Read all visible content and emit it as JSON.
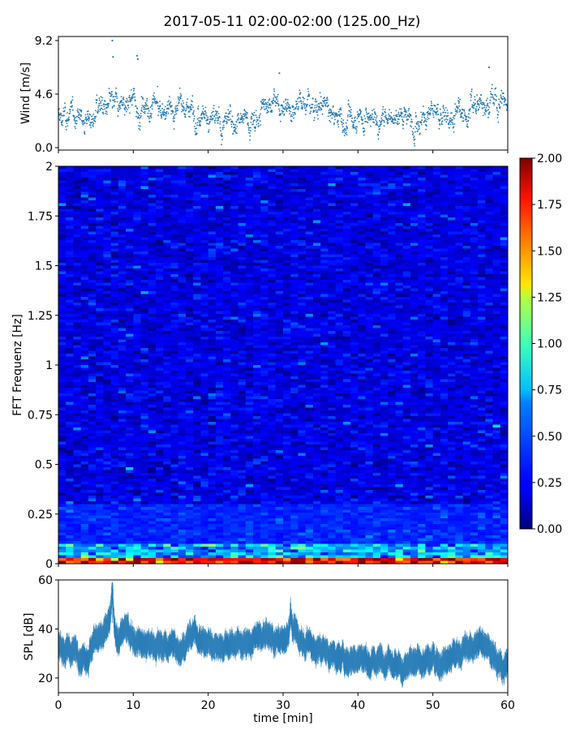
{
  "title": "2017-05-11 02:00-02:00 (125.00_Hz)",
  "chart_data": [
    {
      "type": "scatter",
      "name": "wind",
      "ylabel": "Wind [m/s]",
      "xlim": [
        0,
        60
      ],
      "ylim": [
        0,
        9.2
      ],
      "yticks": [
        "0.0",
        "4.6",
        "9.2"
      ],
      "marker_color": "#1f77b4",
      "approx_mean": 3.0,
      "notable_points": [
        {
          "x": 7.2,
          "y": 9.2
        },
        {
          "x": 7.3,
          "y": 7.8
        },
        {
          "x": 10.5,
          "y": 7.9
        },
        {
          "x": 10.6,
          "y": 7.6
        },
        {
          "x": 29.5,
          "y": 6.4
        },
        {
          "x": 57.5,
          "y": 6.9
        }
      ],
      "segments_mean": [
        {
          "x": [
            0,
            5
          ],
          "y": 2.6
        },
        {
          "x": [
            5,
            12
          ],
          "y": 3.5
        },
        {
          "x": [
            12,
            20
          ],
          "y": 3.3
        },
        {
          "x": [
            20,
            27
          ],
          "y": 2.3
        },
        {
          "x": [
            27,
            36
          ],
          "y": 3.8
        },
        {
          "x": [
            36,
            45
          ],
          "y": 2.6
        },
        {
          "x": [
            45,
            55
          ],
          "y": 2.9
        },
        {
          "x": [
            55,
            60
          ],
          "y": 3.8
        }
      ]
    },
    {
      "type": "heatmap",
      "name": "spectrogram",
      "ylabel": "FFT Frequenz [Hz]",
      "xlim": [
        0,
        60
      ],
      "ylim": [
        0,
        2
      ],
      "yticks": [
        "0",
        "0.25",
        "0.5",
        "0.75",
        "1",
        "1.25",
        "1.5",
        "1.75",
        "2"
      ],
      "colormap": "jet",
      "colorbar": {
        "range": [
          0,
          2
        ],
        "ticks": [
          "0.00",
          "0.25",
          "0.50",
          "0.75",
          "1.00",
          "1.25",
          "1.50",
          "1.75",
          "2.00"
        ]
      },
      "description_values": {
        "background_level": 0.2,
        "low_freq_band_0_to_0_1_hz": 0.6,
        "lowest_band_below_0_03_hz": 1.8
      }
    },
    {
      "type": "line",
      "name": "spl",
      "ylabel": "SPL [dB]",
      "xlabel": "time [min]",
      "xlim": [
        0,
        60
      ],
      "ylim": [
        14,
        60
      ],
      "yticks": [
        "20",
        "40",
        "60"
      ],
      "xticks": [
        "0",
        "10",
        "20",
        "30",
        "40",
        "50",
        "60"
      ],
      "line_color": "#1f77b4",
      "anchors": [
        {
          "x": 0,
          "y": 33
        },
        {
          "x": 2,
          "y": 31
        },
        {
          "x": 4,
          "y": 30
        },
        {
          "x": 5,
          "y": 38
        },
        {
          "x": 6,
          "y": 36
        },
        {
          "x": 7,
          "y": 44
        },
        {
          "x": 8,
          "y": 36
        },
        {
          "x": 9,
          "y": 40
        },
        {
          "x": 10,
          "y": 37
        },
        {
          "x": 12,
          "y": 33
        },
        {
          "x": 14,
          "y": 34
        },
        {
          "x": 16,
          "y": 32
        },
        {
          "x": 18,
          "y": 38
        },
        {
          "x": 20,
          "y": 34
        },
        {
          "x": 22,
          "y": 33
        },
        {
          "x": 24,
          "y": 34
        },
        {
          "x": 26,
          "y": 35
        },
        {
          "x": 28,
          "y": 37
        },
        {
          "x": 30,
          "y": 34
        },
        {
          "x": 31,
          "y": 42
        },
        {
          "x": 32,
          "y": 36
        },
        {
          "x": 34,
          "y": 33
        },
        {
          "x": 36,
          "y": 30
        },
        {
          "x": 38,
          "y": 28
        },
        {
          "x": 40,
          "y": 29
        },
        {
          "x": 42,
          "y": 26
        },
        {
          "x": 44,
          "y": 29
        },
        {
          "x": 46,
          "y": 24
        },
        {
          "x": 48,
          "y": 26
        },
        {
          "x": 50,
          "y": 27
        },
        {
          "x": 52,
          "y": 28
        },
        {
          "x": 54,
          "y": 31
        },
        {
          "x": 56,
          "y": 33
        },
        {
          "x": 57,
          "y": 36
        },
        {
          "x": 58,
          "y": 30
        },
        {
          "x": 59,
          "y": 24
        },
        {
          "x": 60,
          "y": 28
        }
      ],
      "peaks": [
        {
          "x": 7.2,
          "y": 58
        },
        {
          "x": 31.0,
          "y": 51
        }
      ]
    }
  ]
}
